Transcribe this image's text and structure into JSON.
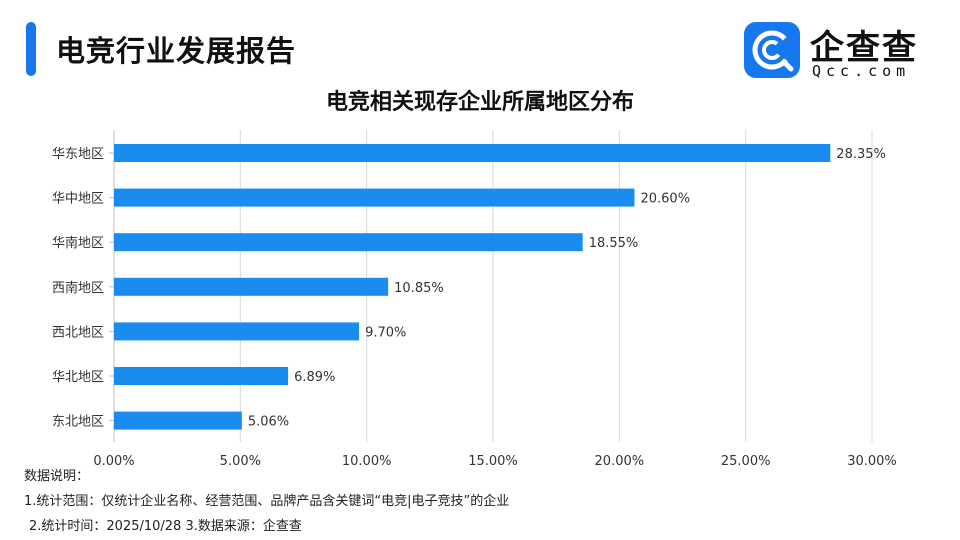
{
  "header": {
    "title": "电竞行业发展报告",
    "accent_color": "#1677ee"
  },
  "logo": {
    "name": "企查查",
    "domain": "Qcc.com",
    "icon": "qcc-logo-icon"
  },
  "chart_data": {
    "type": "bar",
    "orientation": "horizontal",
    "title": "电竞相关现存企业所属地区分布",
    "categories": [
      "华东地区",
      "华中地区",
      "华南地区",
      "西南地区",
      "西北地区",
      "华北地区",
      "东北地区"
    ],
    "values": [
      28.35,
      20.6,
      18.55,
      10.85,
      9.7,
      6.89,
      5.06
    ],
    "value_labels": [
      "28.35%",
      "20.60%",
      "18.55%",
      "10.85%",
      "9.70%",
      "6.89%",
      "5.06%"
    ],
    "xlim": [
      0,
      30
    ],
    "xticks": [
      0,
      5,
      10,
      15,
      20,
      25,
      30
    ],
    "xtick_labels": [
      "0.00%",
      "5.00%",
      "10.00%",
      "15.00%",
      "20.00%",
      "25.00%",
      "30.00%"
    ],
    "xlabel": "",
    "ylabel": "",
    "grid": true,
    "bar_color": "#1a8cf0"
  },
  "notes": {
    "heading": "数据说明：",
    "line1": "1.统计范围：仅统计企业名称、经营范围、品牌产品含关键词“电竞|电子竞技”的企业",
    "line2": "2.统计时间：2025/10/28 3.数据来源：企查查"
  }
}
